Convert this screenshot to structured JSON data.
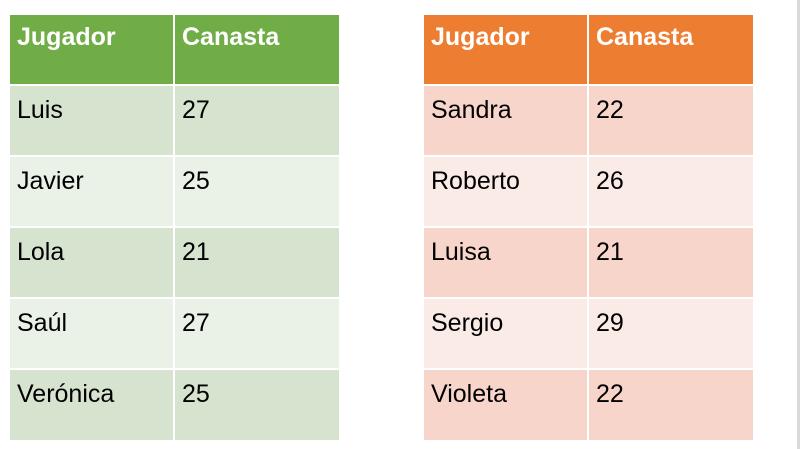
{
  "colors": {
    "green_header": "#70ad47",
    "green_row_dark": "#d5e3cf",
    "green_row_light": "#eaf1e7",
    "orange_header": "#ed7d31",
    "orange_row_dark": "#f8d5cb",
    "orange_row_light": "#fbebe6"
  },
  "tables": [
    {
      "headers": [
        "Jugador",
        "Canasta"
      ],
      "rows": [
        [
          "Luis",
          "27"
        ],
        [
          "Javier",
          "25"
        ],
        [
          "Lola",
          "21"
        ],
        [
          "Saúl",
          "27"
        ],
        [
          "Verónica",
          "25"
        ]
      ]
    },
    {
      "headers": [
        "Jugador",
        "Canasta"
      ],
      "rows": [
        [
          "Sandra",
          "22"
        ],
        [
          "Roberto",
          "26"
        ],
        [
          "Luisa",
          "21"
        ],
        [
          "Sergio",
          "29"
        ],
        [
          "Violeta",
          "22"
        ]
      ]
    }
  ]
}
